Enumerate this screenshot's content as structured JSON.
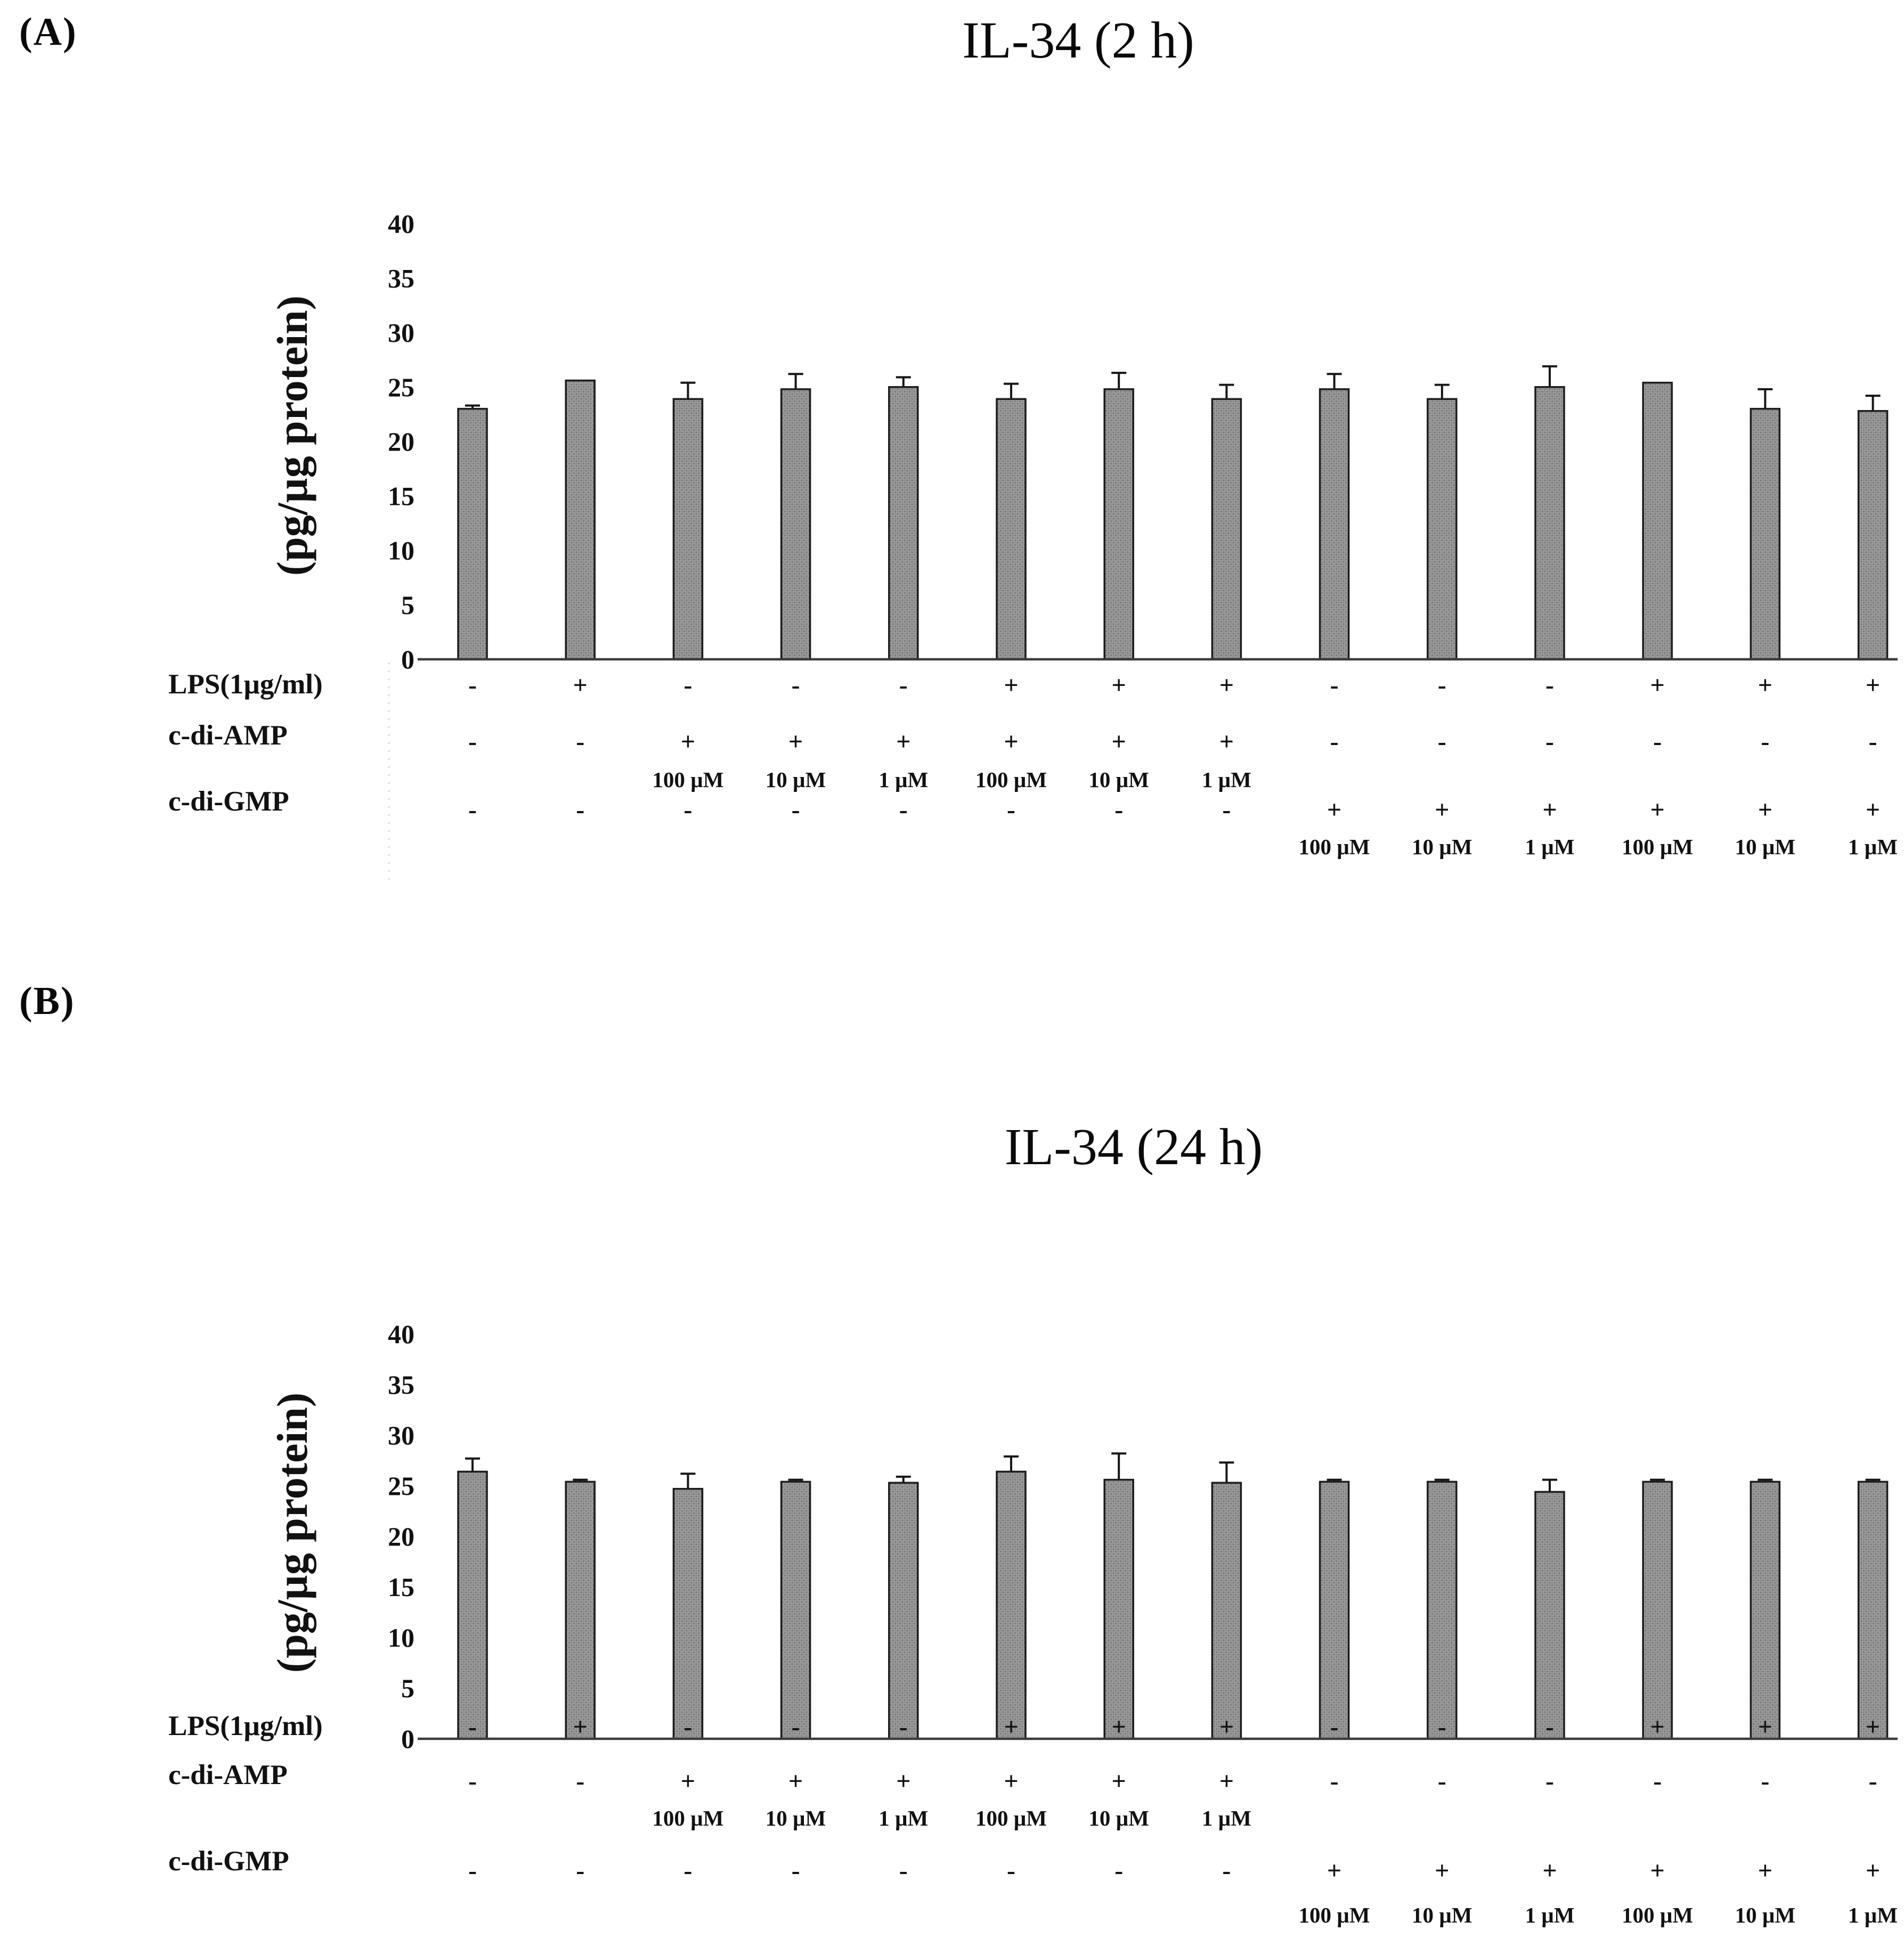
{
  "figure": {
    "panel_a": {
      "label": "(A)"
    },
    "panel_b": {
      "label": "(B)"
    }
  },
  "colors": {
    "bar_fill": "#9a9a9a",
    "bar_dot": "#6f6f6f",
    "bar_border": "#1c1c1c",
    "error_bar": "#161616",
    "axis_line": "#3c3c3c",
    "artifact_line": "#d9d9d9",
    "text": "#111111"
  },
  "chart_data": [
    {
      "type": "bar",
      "title": "IL-34 (2 h)",
      "xlabel": "",
      "ylabel": "(pg/µg protein)",
      "ylim": [
        0,
        40
      ],
      "yticks": [
        40,
        35,
        30,
        25,
        20,
        15,
        10,
        5,
        0
      ],
      "grid": false,
      "legend": "none",
      "values": [
        23.0,
        25.6,
        23.9,
        24.8,
        25.0,
        23.9,
        24.8,
        23.9,
        24.8,
        23.9,
        25.0,
        25.4,
        23.0,
        22.8
      ],
      "errors": [
        0.3,
        0,
        1.5,
        1.4,
        0.9,
        1.4,
        1.5,
        1.3,
        1.4,
        1.3,
        1.9,
        0,
        1.8,
        1.4
      ],
      "condition_rows": [
        {
          "label": "LPS(1µg/ml)",
          "signs": [
            "-",
            "+",
            "-",
            "-",
            "-",
            "+",
            "+",
            "+",
            "-",
            "-",
            "-",
            "+",
            "+",
            "+"
          ]
        },
        {
          "label": "c-di-AMP",
          "signs": [
            "-",
            "-",
            "+",
            "+",
            "+",
            "+",
            "+",
            "+",
            "-",
            "-",
            "-",
            "-",
            "-",
            "-"
          ],
          "concentrations": {
            "start_col": 3,
            "values": [
              "100 µM",
              "10 µM",
              "1 µM",
              "100 µM",
              "10 µM",
              "1 µM"
            ]
          }
        },
        {
          "label": "c-di-GMP",
          "signs": [
            "-",
            "-",
            "-",
            "-",
            "-",
            "-",
            "-",
            "-",
            "+",
            "+",
            "+",
            "+",
            "+",
            "+"
          ],
          "concentrations": {
            "start_col": 9,
            "values": [
              "100 µM",
              "10 µM",
              "1 µM",
              "100 µM",
              "10 µM",
              "1 µM"
            ]
          }
        }
      ]
    },
    {
      "type": "bar",
      "title": "IL-34 (24 h)",
      "xlabel": "",
      "ylabel": "(pg/µg protein)",
      "ylim": [
        0,
        40
      ],
      "yticks": [
        40,
        35,
        30,
        25,
        20,
        15,
        10,
        5,
        0
      ],
      "grid": false,
      "legend": "none",
      "values": [
        26.4,
        25.4,
        24.7,
        25.4,
        25.3,
        26.4,
        25.6,
        25.3,
        25.4,
        25.4,
        24.4,
        25.4,
        25.4,
        25.4
      ],
      "errors": [
        1.3,
        0.2,
        1.5,
        0.2,
        0.6,
        1.5,
        2.6,
        2.0,
        0.2,
        0.2,
        1.2,
        0.2,
        0.2,
        0.2
      ],
      "condition_rows": [
        {
          "label": "LPS(1µg/ml)",
          "signs": [
            "-",
            "+",
            "-",
            "-",
            "-",
            "+",
            "+",
            "+",
            "-",
            "-",
            "-",
            "+",
            "+",
            "+"
          ]
        },
        {
          "label": "c-di-AMP",
          "signs": [
            "-",
            "-",
            "+",
            "+",
            "+",
            "+",
            "+",
            "+",
            "-",
            "-",
            "-",
            "-",
            "-",
            "-"
          ],
          "concentrations": {
            "start_col": 3,
            "values": [
              "100 µM",
              "10 µM",
              "1 µM",
              "100 µM",
              "10 µM",
              "1 µM"
            ]
          }
        },
        {
          "label": "c-di-GMP",
          "signs": [
            "-",
            "-",
            "-",
            "-",
            "-",
            "-",
            "-",
            "-",
            "+",
            "+",
            "+",
            "+",
            "+",
            "+"
          ],
          "concentrations": {
            "start_col": 9,
            "values": [
              "100 µM",
              "10 µM",
              "1 µM",
              "100 µM",
              "10 µM",
              "1 µM"
            ]
          }
        }
      ]
    }
  ]
}
